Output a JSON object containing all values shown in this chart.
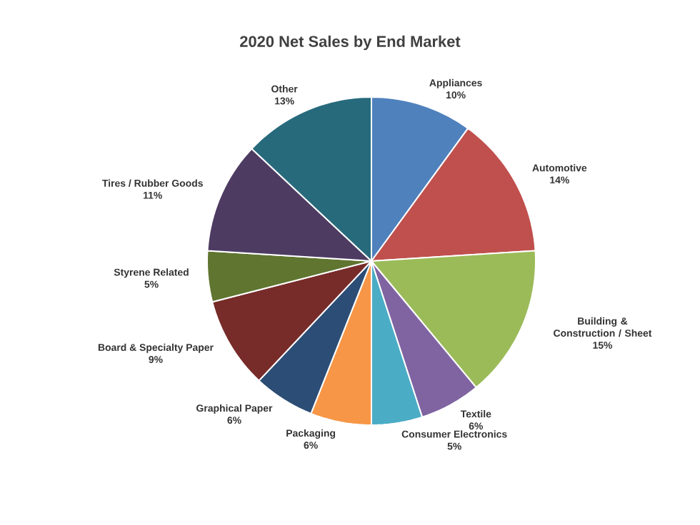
{
  "chart_data": {
    "type": "pie",
    "title": "2020 Net Sales by End Market",
    "categories": [
      "Appliances",
      "Automotive",
      "Building & Construction / Sheet",
      "Textile",
      "Consumer Electronics",
      "Packaging",
      "Graphical Paper",
      "Board & Specialty Paper",
      "Styrene Related",
      "Tires / Rubber Goods",
      "Other"
    ],
    "values": [
      10,
      14,
      15,
      6,
      5,
      6,
      6,
      9,
      5,
      11,
      13
    ],
    "colors": [
      "#4f81bd",
      "#c0504d",
      "#9bbb59",
      "#8064a2",
      "#4bacc6",
      "#f79646",
      "#2c4d75",
      "#772c2a",
      "#5f7530",
      "#4d3b62",
      "#276a7c"
    ],
    "value_labels": [
      "10%",
      "14%",
      "15%",
      "6%",
      "5%",
      "6%",
      "6%",
      "9%",
      "5%",
      "11%",
      "13%"
    ]
  }
}
